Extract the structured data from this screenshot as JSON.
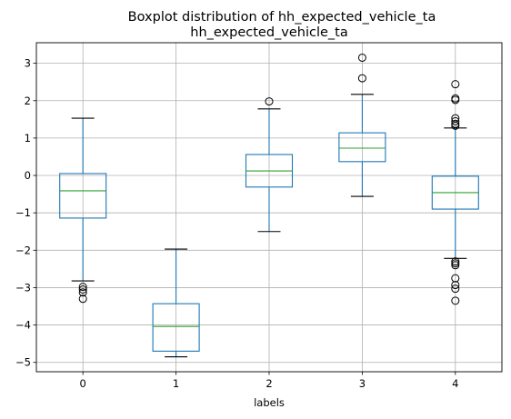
{
  "chart_data": {
    "type": "box",
    "title": "Boxplot distribution of hh_expected_vehicle_ta",
    "subtitle": "hh_expected_vehicle_ta",
    "xlabel": "labels",
    "ylabel": "",
    "categories": [
      "0",
      "1",
      "2",
      "3",
      "4"
    ],
    "ylim": [
      -5.25,
      3.55
    ],
    "yticks": [
      -5,
      -4,
      -3,
      -2,
      -1,
      0,
      1,
      2,
      3
    ],
    "grid": true,
    "colors": {
      "box": "#1f77b4",
      "median": "#2ca02c",
      "whisker_cap": "#000000",
      "grid": "#b0b0b0",
      "flier": "#000000"
    },
    "boxes": [
      {
        "category": "0",
        "whisker_low": -2.82,
        "q1": -1.14,
        "median": -0.41,
        "q3": 0.05,
        "whisker_high": 1.53,
        "fliers": [
          -2.98,
          -3.05,
          -3.13,
          -3.3
        ]
      },
      {
        "category": "1",
        "whisker_low": -4.85,
        "q1": -4.7,
        "median": -4.04,
        "q3": -3.43,
        "whisker_high": -1.97,
        "fliers": []
      },
      {
        "category": "2",
        "whisker_low": -1.5,
        "q1": -0.31,
        "median": 0.12,
        "q3": 0.56,
        "whisker_high": 1.78,
        "fliers": [
          1.98
        ]
      },
      {
        "category": "3",
        "whisker_low": -0.56,
        "q1": 0.37,
        "median": 0.73,
        "q3": 1.14,
        "whisker_high": 2.17,
        "fliers": [
          2.6,
          3.15
        ]
      },
      {
        "category": "4",
        "whisker_low": -2.22,
        "q1": -0.9,
        "median": -0.46,
        "q3": -0.02,
        "whisker_high": 1.27,
        "fliers": [
          2.44,
          2.06,
          2.02,
          1.53,
          1.45,
          1.38,
          1.33,
          -2.3,
          -2.35,
          -2.4,
          -2.75,
          -2.93,
          -3.03,
          -3.35
        ]
      }
    ]
  }
}
